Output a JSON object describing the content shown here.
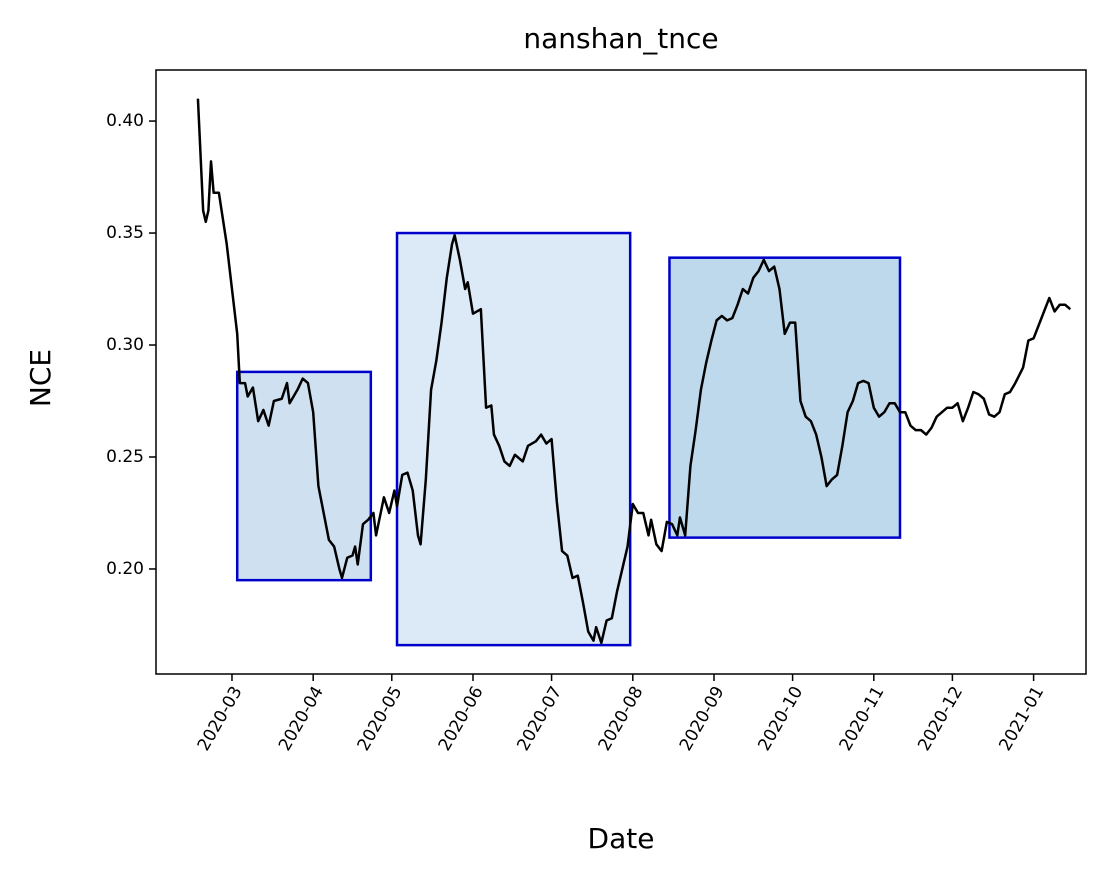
{
  "chart_data": {
    "type": "line",
    "title": "nanshan_tnce",
    "x_label": "Date",
    "y_label": "NCE",
    "color": "#000000",
    "x": [
      "2020-02-17",
      "2020-02-19",
      "2020-02-20",
      "2020-02-21",
      "2020-02-22",
      "2020-02-23",
      "2020-02-25",
      "2020-02-28",
      "2020-03-01",
      "2020-03-03",
      "2020-03-04",
      "2020-03-06",
      "2020-03-07",
      "2020-03-09",
      "2020-03-11",
      "2020-03-13",
      "2020-03-15",
      "2020-03-17",
      "2020-03-20",
      "2020-03-22",
      "2020-03-23",
      "2020-03-26",
      "2020-03-28",
      "2020-03-30",
      "2020-04-01",
      "2020-04-03",
      "2020-04-05",
      "2020-04-07",
      "2020-04-09",
      "2020-04-11",
      "2020-04-12",
      "2020-04-14",
      "2020-04-16",
      "2020-04-17",
      "2020-04-18",
      "2020-04-20",
      "2020-04-22",
      "2020-04-24",
      "2020-04-25",
      "2020-04-28",
      "2020-04-30",
      "2020-05-02",
      "2020-05-03",
      "2020-05-05",
      "2020-05-07",
      "2020-05-09",
      "2020-05-11",
      "2020-05-12",
      "2020-05-14",
      "2020-05-16",
      "2020-05-18",
      "2020-05-20",
      "2020-05-22",
      "2020-05-24",
      "2020-05-25",
      "2020-05-27",
      "2020-05-29",
      "2020-05-30",
      "2020-06-01",
      "2020-06-04",
      "2020-06-06",
      "2020-06-08",
      "2020-06-09",
      "2020-06-11",
      "2020-06-13",
      "2020-06-15",
      "2020-06-17",
      "2020-06-20",
      "2020-06-22",
      "2020-06-25",
      "2020-06-27",
      "2020-06-29",
      "2020-07-01",
      "2020-07-03",
      "2020-07-05",
      "2020-07-07",
      "2020-07-09",
      "2020-07-11",
      "2020-07-13",
      "2020-07-15",
      "2020-07-17",
      "2020-07-18",
      "2020-07-20",
      "2020-07-22",
      "2020-07-24",
      "2020-07-26",
      "2020-07-28",
      "2020-07-30",
      "2020-08-01",
      "2020-08-03",
      "2020-08-05",
      "2020-08-07",
      "2020-08-08",
      "2020-08-10",
      "2020-08-12",
      "2020-08-14",
      "2020-08-16",
      "2020-08-18",
      "2020-08-19",
      "2020-08-21",
      "2020-08-23",
      "2020-08-25",
      "2020-08-27",
      "2020-08-29",
      "2020-08-31",
      "2020-09-02",
      "2020-09-04",
      "2020-09-06",
      "2020-09-08",
      "2020-09-10",
      "2020-09-12",
      "2020-09-14",
      "2020-09-16",
      "2020-09-18",
      "2020-09-20",
      "2020-09-22",
      "2020-09-24",
      "2020-09-26",
      "2020-09-28",
      "2020-09-30",
      "2020-10-02",
      "2020-10-04",
      "2020-10-06",
      "2020-10-08",
      "2020-10-10",
      "2020-10-12",
      "2020-10-14",
      "2020-10-16",
      "2020-10-18",
      "2020-10-20",
      "2020-10-22",
      "2020-10-24",
      "2020-10-26",
      "2020-10-28",
      "2020-10-30",
      "2020-11-01",
      "2020-11-03",
      "2020-11-05",
      "2020-11-07",
      "2020-11-09",
      "2020-11-11",
      "2020-11-13",
      "2020-11-15",
      "2020-11-17",
      "2020-11-19",
      "2020-11-21",
      "2020-11-23",
      "2020-11-25",
      "2020-11-27",
      "2020-11-29",
      "2020-12-01",
      "2020-12-03",
      "2020-12-05",
      "2020-12-07",
      "2020-12-09",
      "2020-12-11",
      "2020-12-13",
      "2020-12-15",
      "2020-12-17",
      "2020-12-19",
      "2020-12-21",
      "2020-12-23",
      "2020-12-25",
      "2020-12-28",
      "2020-12-30",
      "2021-01-01",
      "2021-01-04",
      "2021-01-07",
      "2021-01-09",
      "2021-01-11",
      "2021-01-13",
      "2021-01-15"
    ],
    "values": [
      0.41,
      0.36,
      0.355,
      0.36,
      0.382,
      0.368,
      0.368,
      0.345,
      0.325,
      0.305,
      0.283,
      0.283,
      0.277,
      0.281,
      0.266,
      0.271,
      0.264,
      0.275,
      0.276,
      0.283,
      0.274,
      0.28,
      0.285,
      0.283,
      0.27,
      0.237,
      0.225,
      0.213,
      0.21,
      0.2,
      0.196,
      0.205,
      0.206,
      0.21,
      0.202,
      0.22,
      0.222,
      0.225,
      0.215,
      0.232,
      0.225,
      0.235,
      0.228,
      0.242,
      0.243,
      0.235,
      0.215,
      0.211,
      0.24,
      0.28,
      0.293,
      0.31,
      0.33,
      0.345,
      0.349,
      0.338,
      0.325,
      0.328,
      0.314,
      0.316,
      0.272,
      0.273,
      0.26,
      0.255,
      0.248,
      0.246,
      0.251,
      0.248,
      0.255,
      0.257,
      0.26,
      0.256,
      0.258,
      0.23,
      0.208,
      0.206,
      0.196,
      0.197,
      0.185,
      0.172,
      0.168,
      0.174,
      0.167,
      0.177,
      0.178,
      0.19,
      0.2,
      0.21,
      0.229,
      0.225,
      0.225,
      0.215,
      0.222,
      0.211,
      0.208,
      0.221,
      0.22,
      0.215,
      0.223,
      0.215,
      0.246,
      0.262,
      0.28,
      0.292,
      0.302,
      0.311,
      0.313,
      0.311,
      0.312,
      0.318,
      0.325,
      0.323,
      0.33,
      0.333,
      0.338,
      0.333,
      0.335,
      0.325,
      0.305,
      0.31,
      0.31,
      0.275,
      0.268,
      0.266,
      0.26,
      0.25,
      0.237,
      0.24,
      0.242,
      0.255,
      0.27,
      0.275,
      0.283,
      0.284,
      0.283,
      0.272,
      0.268,
      0.27,
      0.274,
      0.274,
      0.27,
      0.27,
      0.264,
      0.262,
      0.262,
      0.26,
      0.263,
      0.268,
      0.27,
      0.272,
      0.272,
      0.274,
      0.266,
      0.272,
      0.279,
      0.278,
      0.276,
      0.269,
      0.268,
      0.27,
      0.278,
      0.279,
      0.283,
      0.29,
      0.302,
      0.303,
      0.312,
      0.321,
      0.315,
      0.318,
      0.318,
      0.316
    ],
    "regions": [
      {
        "x0": "2020-03-03",
        "x1": "2020-04-23",
        "y0": 0.195,
        "y1": 0.288,
        "fill": "#cfe0f1"
      },
      {
        "x0": "2020-05-03",
        "x1": "2020-07-31",
        "y0": 0.166,
        "y1": 0.35,
        "fill": "#dce9f6"
      },
      {
        "x0": "2020-08-15",
        "x1": "2020-11-11",
        "y0": 0.214,
        "y1": 0.339,
        "fill": "#bfd9ec"
      }
    ],
    "region_edge_color": "#0000cc",
    "xlim": [
      "2020-02-01",
      "2021-01-21"
    ],
    "xticks": [
      {
        "value": "2020-03-01",
        "label": "2020-03"
      },
      {
        "value": "2020-04-01",
        "label": "2020-04"
      },
      {
        "value": "2020-05-01",
        "label": "2020-05"
      },
      {
        "value": "2020-06-01",
        "label": "2020-06"
      },
      {
        "value": "2020-07-01",
        "label": "2020-07"
      },
      {
        "value": "2020-08-01",
        "label": "2020-08"
      },
      {
        "value": "2020-09-01",
        "label": "2020-09"
      },
      {
        "value": "2020-10-01",
        "label": "2020-10"
      },
      {
        "value": "2020-11-01",
        "label": "2020-11"
      },
      {
        "value": "2020-12-01",
        "label": "2020-12"
      },
      {
        "value": "2021-01-01",
        "label": "2021-01"
      }
    ],
    "ylim": [
      0.1531,
      0.4228
    ],
    "yticks": [
      {
        "value": 0.2,
        "label": "0.20"
      },
      0.25,
      {
        "value": 0.3,
        "label": "0.30"
      },
      0.35,
      {
        "value": 0.4,
        "label": "0.40"
      }
    ],
    "grid": false
  }
}
